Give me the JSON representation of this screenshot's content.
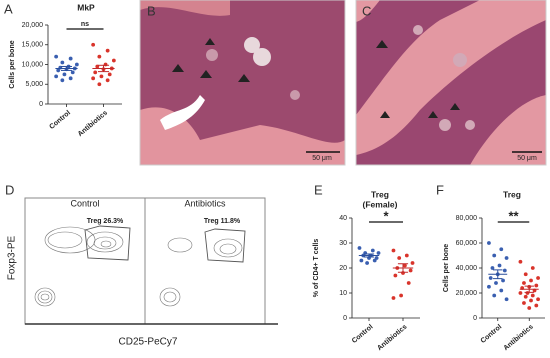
{
  "chart_data": [
    {
      "type": "strip",
      "panel_label": "A",
      "title": [
        "MkP"
      ],
      "y_label": "Cells per bone",
      "categories": [
        "Control",
        "Antibiotics"
      ],
      "colors": [
        "#3a5fb0",
        "#d9342b"
      ],
      "points": [
        [
          12000,
          11500,
          10500,
          10000,
          9500,
          9200,
          9000,
          8800,
          8500,
          8000,
          7500,
          7000,
          6500,
          6000
        ],
        [
          15000,
          13500,
          12000,
          11000,
          10000,
          9500,
          9000,
          8800,
          8000,
          7500,
          7000,
          6500,
          6000,
          5000
        ]
      ],
      "means": [
        9000,
        9000
      ],
      "errors": [
        500,
        800
      ],
      "annotation": "ns",
      "ylim": [
        0,
        20000
      ],
      "yticks": [
        0,
        {
          "value": 5000,
          "label": "5,000"
        },
        {
          "value": 10000,
          "label": "10,000"
        },
        {
          "value": 15000,
          "label": "15,000"
        },
        {
          "value": 20000,
          "label": "20,000"
        }
      ]
    },
    {
      "type": "strip",
      "panel_label": "E",
      "title": [
        "Treg",
        "(Female)"
      ],
      "y_label": "% of CD4+ T cells",
      "categories": [
        "Control",
        "Antibiotics"
      ],
      "colors": [
        "#3a5fb0",
        "#d9342b"
      ],
      "points": [
        [
          28,
          27,
          26,
          26,
          25,
          25,
          24,
          24,
          23,
          23,
          22
        ],
        [
          27,
          25,
          24,
          22,
          21,
          20,
          19,
          18,
          17,
          14,
          9,
          8
        ]
      ],
      "means": [
        25,
        20
      ],
      "errors": [
        0.6,
        1.7
      ],
      "annotation": "*",
      "ylim": [
        0,
        40
      ],
      "yticks": [
        0,
        10,
        20,
        30,
        40
      ]
    },
    {
      "type": "strip",
      "panel_label": "F",
      "title": [
        "Treg"
      ],
      "y_label": "Cells per bone",
      "categories": [
        "Control",
        "Antibiotics"
      ],
      "colors": [
        "#3a5fb0",
        "#d9342b"
      ],
      "points": [
        [
          60000,
          55000,
          50000,
          48000,
          42000,
          40000,
          38000,
          35000,
          32000,
          30000,
          28000,
          25000,
          22000,
          18000,
          15000
        ],
        [
          45000,
          40000,
          35000,
          32000,
          30000,
          28000,
          26000,
          25000,
          24000,
          22000,
          20000,
          20000,
          18000,
          17000,
          15000,
          14000,
          12000,
          10000,
          8000
        ]
      ],
      "means": [
        35000,
        23000
      ],
      "errors": [
        3500,
        2500
      ],
      "annotation": "**",
      "ylim": [
        0,
        80000
      ],
      "yticks": [
        0,
        {
          "value": 20000,
          "label": "20,000"
        },
        {
          "value": 40000,
          "label": "40,000"
        },
        {
          "value": 60000,
          "label": "60,000"
        },
        {
          "value": 80000,
          "label": "80,000"
        }
      ]
    }
  ],
  "images": [
    {
      "panel_label": "B",
      "scale_bar": "50 μm"
    },
    {
      "panel_label": "C",
      "scale_bar": "50 μm"
    }
  ],
  "flow": {
    "panel_label": "D",
    "y_label": "Foxp3-PE",
    "x_label": "CD25-PeCy7",
    "panels": [
      {
        "title": "Control",
        "gate": "Treg 26.3%"
      },
      {
        "title": "Antibiotics",
        "gate": "Treg 11.8%"
      }
    ]
  }
}
